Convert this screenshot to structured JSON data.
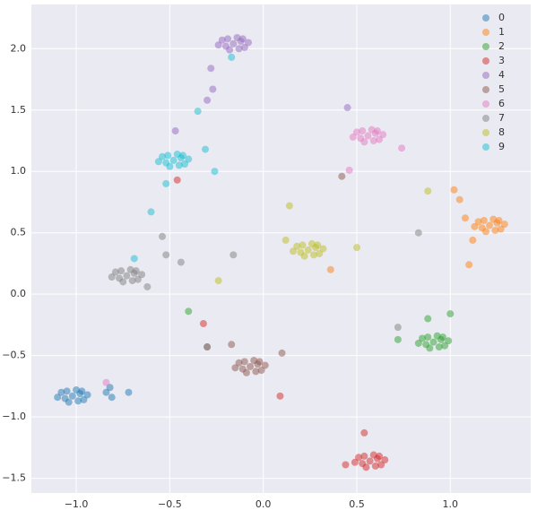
{
  "chart_data": {
    "type": "scatter",
    "xlim": [
      -1.24,
      1.43
    ],
    "ylim": [
      -1.62,
      2.36
    ],
    "xticks": [
      {
        "value": -1.0,
        "label": "−1.0"
      },
      {
        "value": -0.5,
        "label": "−0.5"
      },
      {
        "value": 0.0,
        "label": "0.0"
      },
      {
        "value": 0.5,
        "label": "0.5"
      },
      {
        "value": 1.0,
        "label": "1.0"
      }
    ],
    "yticks": [
      {
        "value": -1.5,
        "label": "−1.5"
      },
      {
        "value": -1.0,
        "label": "−1.0"
      },
      {
        "value": -0.5,
        "label": "−0.5"
      },
      {
        "value": 0.0,
        "label": "0.0"
      },
      {
        "value": 0.5,
        "label": "0.5"
      },
      {
        "value": 1.0,
        "label": "1.0"
      },
      {
        "value": 1.5,
        "label": "1.5"
      },
      {
        "value": 2.0,
        "label": "2.0"
      }
    ],
    "grid": true,
    "legend": "upper-right",
    "series": [
      {
        "name": "0",
        "color": "#1f77b4",
        "x": [
          -1.02,
          -0.98,
          -1.06,
          -0.96,
          -1.08,
          -1.0,
          -1.04,
          -0.94,
          -1.1,
          -0.99,
          -1.05,
          -0.97,
          -0.84,
          -0.82,
          -0.81,
          -0.72
        ],
        "y": [
          -0.83,
          -0.81,
          -0.85,
          -0.86,
          -0.8,
          -0.78,
          -0.88,
          -0.82,
          -0.84,
          -0.87,
          -0.79,
          -0.79,
          -0.8,
          -0.76,
          -0.84,
          -0.8
        ]
      },
      {
        "name": "1",
        "color": "#ff7f0e",
        "x": [
          1.21,
          1.25,
          1.17,
          1.27,
          1.15,
          1.23,
          1.19,
          1.29,
          1.13,
          1.24,
          1.18,
          1.26,
          1.02,
          1.05,
          1.1,
          0.36,
          1.08,
          1.12
        ],
        "y": [
          0.56,
          0.58,
          0.54,
          0.53,
          0.59,
          0.61,
          0.51,
          0.57,
          0.55,
          0.52,
          0.6,
          0.6,
          0.85,
          0.77,
          0.24,
          0.2,
          0.62,
          0.44
        ]
      },
      {
        "name": "2",
        "color": "#2ca02c",
        "x": [
          0.91,
          0.95,
          0.87,
          0.97,
          0.85,
          0.93,
          0.89,
          0.99,
          0.83,
          0.94,
          0.88,
          0.96,
          0.72,
          1.0,
          0.88,
          -0.4
        ],
        "y": [
          -0.39,
          -0.37,
          -0.41,
          -0.42,
          -0.36,
          -0.34,
          -0.44,
          -0.38,
          -0.4,
          -0.43,
          -0.35,
          -0.35,
          -0.37,
          -0.16,
          -0.2,
          -0.14
        ]
      },
      {
        "name": "3",
        "color": "#d62728",
        "x": [
          0.57,
          0.61,
          0.53,
          0.63,
          0.51,
          0.59,
          0.55,
          0.65,
          0.49,
          0.6,
          0.54,
          0.62,
          0.54,
          0.44,
          -0.32,
          0.09,
          -0.46
        ],
        "y": [
          -1.36,
          -1.34,
          -1.38,
          -1.39,
          -1.33,
          -1.31,
          -1.41,
          -1.35,
          -1.37,
          -1.4,
          -1.32,
          -1.32,
          -1.13,
          -1.39,
          -0.24,
          -0.83,
          0.93
        ]
      },
      {
        "name": "4",
        "color": "#9467bd",
        "x": [
          -0.16,
          -0.12,
          -0.2,
          -0.1,
          -0.22,
          -0.14,
          -0.18,
          -0.08,
          -0.24,
          -0.13,
          -0.19,
          -0.11,
          -0.28,
          -0.27,
          -0.3,
          0.45,
          -0.47
        ],
        "y": [
          2.04,
          2.06,
          2.02,
          2.01,
          2.07,
          2.09,
          1.99,
          2.05,
          2.03,
          2.0,
          2.08,
          2.08,
          1.84,
          1.67,
          1.58,
          1.52,
          1.33
        ]
      },
      {
        "name": "5",
        "color": "#8c564b",
        "x": [
          -0.07,
          -0.03,
          -0.11,
          -0.01,
          -0.13,
          -0.05,
          -0.09,
          0.01,
          -0.15,
          -0.04,
          -0.1,
          -0.02,
          0.42,
          -0.3,
          0.1,
          -0.17
        ],
        "y": [
          -0.59,
          -0.57,
          -0.61,
          -0.62,
          -0.56,
          -0.54,
          -0.64,
          -0.58,
          -0.6,
          -0.63,
          -0.55,
          -0.55,
          0.96,
          -0.43,
          -0.48,
          -0.41
        ]
      },
      {
        "name": "6",
        "color": "#e377c2",
        "x": [
          0.56,
          0.6,
          0.52,
          0.62,
          0.5,
          0.58,
          0.54,
          0.64,
          0.48,
          0.59,
          0.53,
          0.61,
          0.74,
          0.46,
          -0.84
        ],
        "y": [
          1.29,
          1.31,
          1.27,
          1.26,
          1.32,
          1.34,
          1.24,
          1.3,
          1.28,
          1.25,
          1.33,
          1.33,
          1.19,
          1.01,
          -0.72
        ]
      },
      {
        "name": "7",
        "color": "#7f7f7f",
        "x": [
          -0.73,
          -0.69,
          -0.77,
          -0.67,
          -0.79,
          -0.71,
          -0.75,
          -0.65,
          -0.81,
          -0.7,
          -0.76,
          -0.68,
          -0.54,
          -0.52,
          -0.44,
          -0.16,
          0.83,
          0.72,
          -0.3,
          -0.62
        ],
        "y": [
          0.15,
          0.17,
          0.13,
          0.12,
          0.18,
          0.2,
          0.1,
          0.16,
          0.14,
          0.11,
          0.19,
          0.19,
          0.47,
          0.32,
          0.26,
          0.32,
          0.5,
          -0.27,
          -0.43,
          0.06
        ]
      },
      {
        "name": "8",
        "color": "#bcbd22",
        "x": [
          0.24,
          0.28,
          0.2,
          0.3,
          0.18,
          0.26,
          0.22,
          0.32,
          0.16,
          0.27,
          0.21,
          0.29,
          0.14,
          0.5,
          0.88,
          -0.24,
          0.12
        ],
        "y": [
          0.36,
          0.38,
          0.34,
          0.33,
          0.39,
          0.41,
          0.31,
          0.37,
          0.35,
          0.32,
          0.4,
          0.4,
          0.72,
          0.38,
          0.84,
          0.11,
          0.44
        ]
      },
      {
        "name": "9",
        "color": "#17becf",
        "x": [
          -0.48,
          -0.44,
          -0.52,
          -0.42,
          -0.54,
          -0.46,
          -0.5,
          -0.4,
          -0.56,
          -0.45,
          -0.51,
          -0.43,
          -0.35,
          -0.31,
          -0.6,
          -0.17,
          -0.69,
          -0.26,
          -0.52
        ],
        "y": [
          1.09,
          1.11,
          1.07,
          1.06,
          1.12,
          1.14,
          1.04,
          1.1,
          1.08,
          1.05,
          1.13,
          1.13,
          1.49,
          1.18,
          0.67,
          1.93,
          0.29,
          1.0,
          0.9
        ]
      }
    ]
  }
}
